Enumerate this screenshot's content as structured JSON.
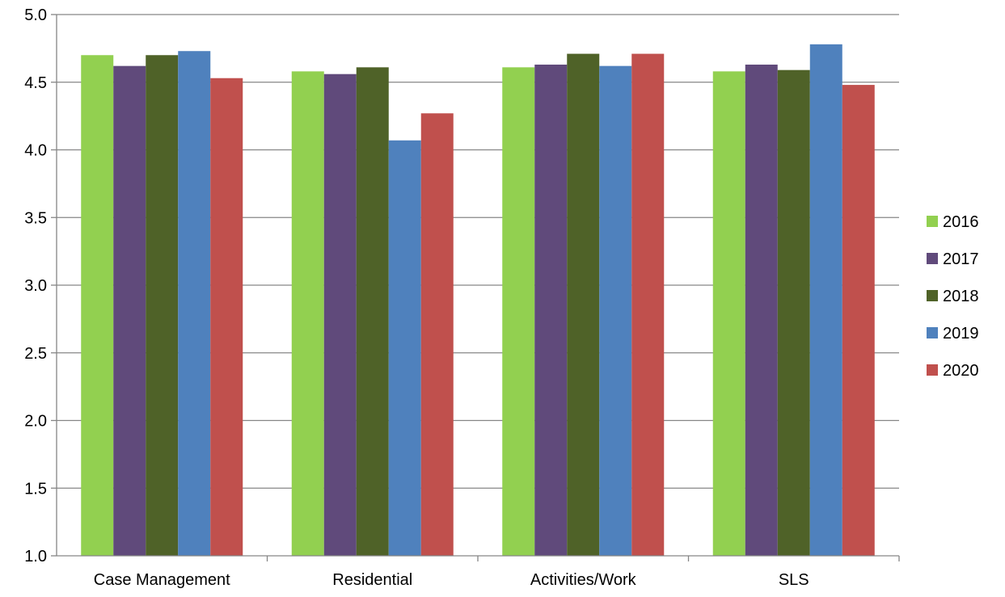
{
  "chart_data": {
    "type": "bar",
    "categories": [
      "Case Management",
      "Residential",
      "Activities/Work",
      "SLS"
    ],
    "series": [
      {
        "name": "2016",
        "color": "#92d050",
        "values": [
          4.7,
          4.58,
          4.61,
          4.58
        ]
      },
      {
        "name": "2017",
        "color": "#604a7b",
        "values": [
          4.62,
          4.56,
          4.63,
          4.63
        ]
      },
      {
        "name": "2018",
        "color": "#4f6228",
        "values": [
          4.7,
          4.61,
          4.71,
          4.59
        ]
      },
      {
        "name": "2019",
        "color": "#4f81bd",
        "values": [
          4.73,
          4.07,
          4.62,
          4.78
        ]
      },
      {
        "name": "2020",
        "color": "#c0504d",
        "values": [
          4.53,
          4.27,
          4.71,
          4.48
        ]
      }
    ],
    "ylim": [
      1.0,
      5.0
    ],
    "yticks": [
      "1.0",
      "1.5",
      "2.0",
      "2.5",
      "3.0",
      "3.5",
      "4.0",
      "4.5",
      "5.0"
    ],
    "grid": true,
    "legend_position": "right",
    "title": "",
    "xlabel": "",
    "ylabel": ""
  }
}
